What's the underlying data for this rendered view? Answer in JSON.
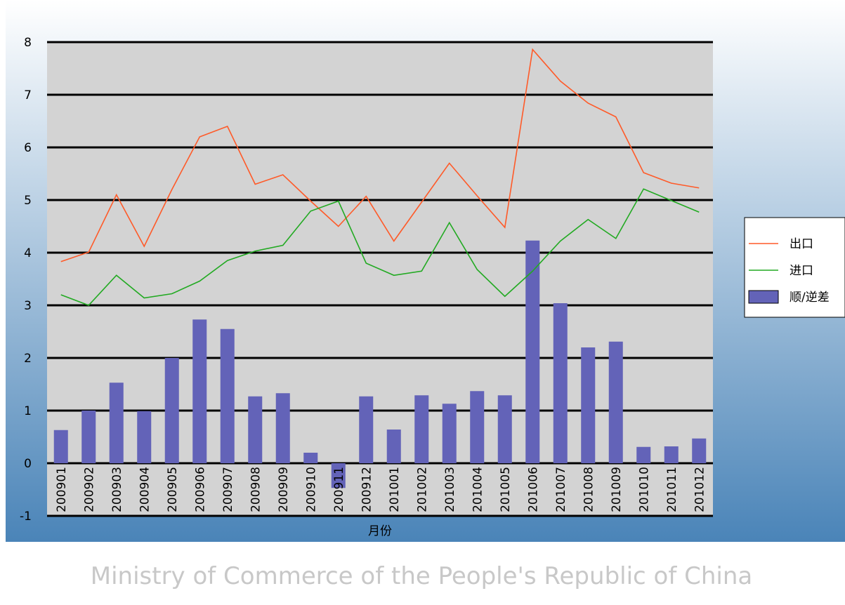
{
  "chart_data": {
    "type": "bar_line",
    "x_label": "月份",
    "watermark": "Ministry of Commerce of the People's Republic of China",
    "categories": [
      "200901",
      "200902",
      "200903",
      "200904",
      "200905",
      "200906",
      "200907",
      "200908",
      "200909",
      "200910",
      "200911",
      "200912",
      "201001",
      "201002",
      "201003",
      "201004",
      "201005",
      "201006",
      "201007",
      "201008",
      "201009",
      "201010",
      "201011",
      "201012"
    ],
    "series": [
      {
        "name": "出口",
        "type": "line",
        "color": "#ff5a28",
        "values": [
          3.83,
          4.01,
          5.1,
          4.12,
          5.2,
          6.2,
          6.4,
          5.3,
          5.48,
          4.98,
          4.5,
          5.07,
          4.22,
          4.96,
          5.7,
          5.08,
          4.48,
          7.86,
          7.26,
          6.84,
          6.58,
          5.52,
          5.32,
          5.23
        ]
      },
      {
        "name": "进口",
        "type": "line",
        "color": "#22aa22",
        "values": [
          3.2,
          3.0,
          3.57,
          3.14,
          3.22,
          3.46,
          3.85,
          4.03,
          4.14,
          4.79,
          4.98,
          3.8,
          3.57,
          3.65,
          4.57,
          3.68,
          3.17,
          3.65,
          4.22,
          4.63,
          4.27,
          5.21,
          4.99,
          4.77
        ]
      },
      {
        "name": "顺/逆差",
        "type": "bar",
        "color": "#6363b8",
        "values": [
          0.63,
          1.0,
          1.53,
          0.99,
          2.0,
          2.73,
          2.55,
          1.27,
          1.33,
          0.2,
          -0.47,
          1.27,
          0.64,
          1.29,
          1.13,
          1.37,
          1.29,
          4.23,
          3.04,
          2.2,
          2.31,
          0.31,
          0.32,
          0.47
        ]
      }
    ],
    "ylim": [
      -1,
      8
    ],
    "yticks": [
      -1,
      0,
      1,
      2,
      3,
      4,
      5,
      6,
      7,
      8
    ],
    "grid": true,
    "legend": "right"
  }
}
